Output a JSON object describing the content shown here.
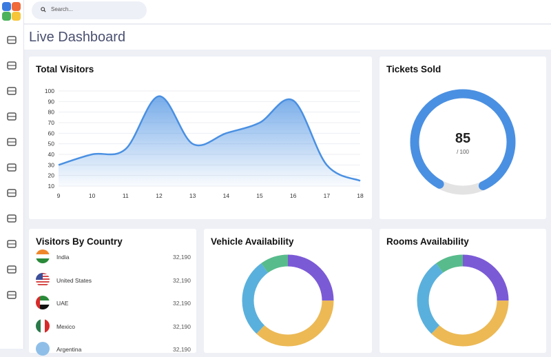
{
  "search": {
    "placeholder": "Search..."
  },
  "page_title": "Live Dashboard",
  "sidebar": {
    "icons": [
      "bar-chart-icon",
      "tools-icon",
      "car-icon",
      "calendar-icon",
      "store-icon",
      "microphone-icon",
      "briefcase-icon",
      "user-settings-icon",
      "coins-icon",
      "vehicle-icon",
      "building-icon"
    ]
  },
  "total_visitors": {
    "title": "Total Visitors",
    "chart_data": {
      "type": "area",
      "x": [
        9,
        10,
        11,
        12,
        13,
        14,
        15,
        16,
        17,
        18
      ],
      "y": [
        30,
        40,
        45,
        95,
        50,
        60,
        70,
        91,
        30,
        15
      ],
      "ylim": [
        10,
        100
      ],
      "yticks": [
        10,
        20,
        30,
        40,
        50,
        60,
        70,
        80,
        90,
        100
      ],
      "xticks": [
        9,
        10,
        11,
        12,
        13,
        14,
        15,
        16,
        17,
        18
      ],
      "grid": true,
      "color": "#4a90e2"
    }
  },
  "tickets": {
    "title": "Tickets Sold",
    "value": "85",
    "total": "/ 100",
    "fraction": 0.85,
    "color": "#4a90e2",
    "track": "#e3e3e3"
  },
  "countries": {
    "title": "Visitors By Country",
    "items": [
      {
        "name": "India",
        "value": "32,190"
      },
      {
        "name": "United States",
        "value": "32,190"
      },
      {
        "name": "UAE",
        "value": "32,190"
      },
      {
        "name": "Mexico",
        "value": "32,190"
      },
      {
        "name": "Argentina",
        "value": "32,190"
      }
    ]
  },
  "vehicle": {
    "title": "Vehicle Availability",
    "segments": [
      {
        "value": 25,
        "color": "#7b5ad6"
      },
      {
        "value": 37,
        "color": "#ecb955"
      },
      {
        "value": 28,
        "color": "#5ab0dc"
      },
      {
        "value": 10,
        "color": "#58bb8c"
      }
    ]
  },
  "rooms": {
    "title": "Rooms Availability",
    "segments": [
      {
        "value": 25,
        "color": "#7b5ad6"
      },
      {
        "value": 37,
        "color": "#ecb955"
      },
      {
        "value": 28,
        "color": "#5ab0dc"
      },
      {
        "value": 10,
        "color": "#58bb8c"
      }
    ]
  }
}
